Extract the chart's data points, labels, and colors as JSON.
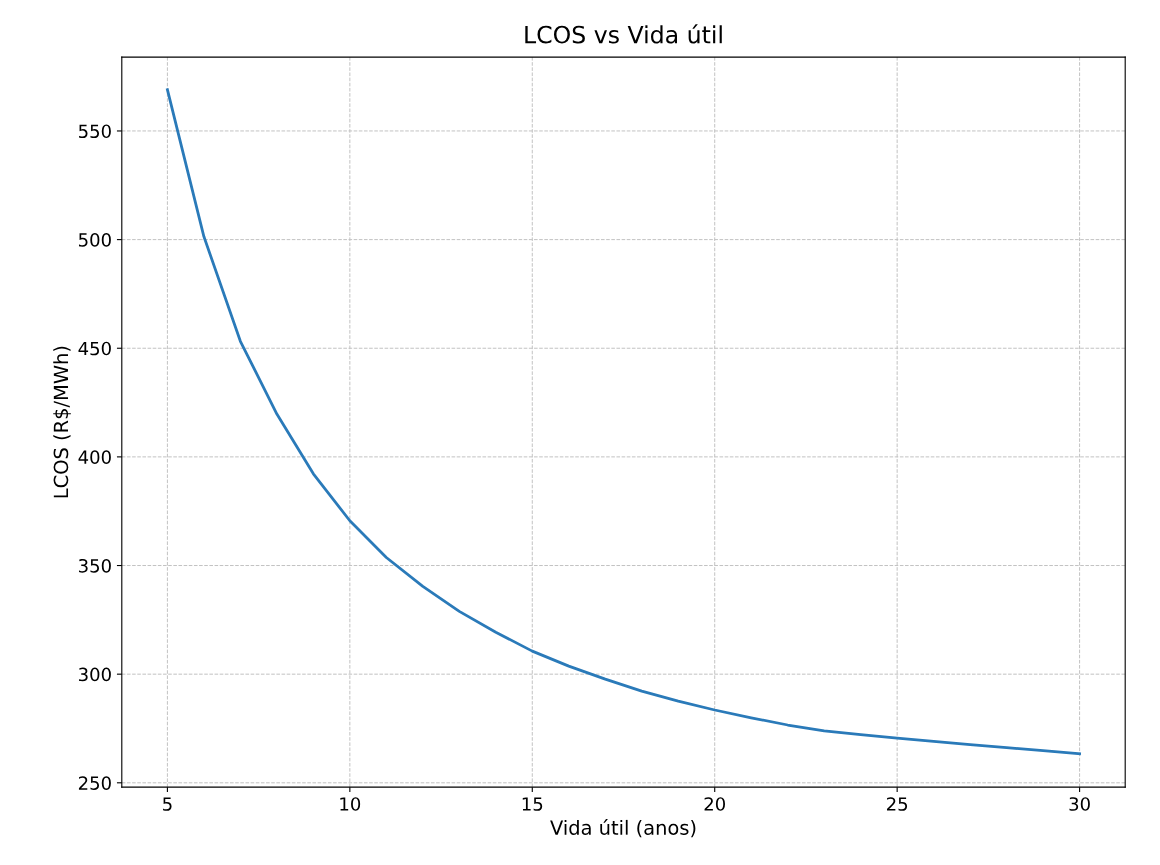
{
  "chart_data": {
    "type": "line",
    "title": "LCOS vs Vida útil",
    "xlabel": "Vida útil (anos)",
    "ylabel": "LCOS (R$/MWh)",
    "x": [
      5,
      6,
      7,
      8,
      9,
      10,
      11,
      12,
      13,
      14,
      15,
      16,
      17,
      18,
      19,
      20,
      21,
      22,
      23,
      24,
      25,
      26,
      27,
      28,
      29,
      30
    ],
    "series": [
      {
        "color": "#2a7ab9",
        "values": [
          569,
          501.4,
          453.2,
          419.7,
          392.2,
          370.6,
          353.7,
          340.4,
          328.9,
          319.3,
          310.6,
          303.7,
          297.7,
          292.2,
          287.6,
          283.5,
          279.9,
          276.6,
          273.9,
          272.2,
          270.6,
          269.1,
          267.6,
          266.2,
          264.8,
          263.4
        ]
      }
    ],
    "xlim": [
      3.75,
      31.25
    ],
    "ylim": [
      248,
      584
    ],
    "xticks": [
      5,
      10,
      15,
      20,
      25,
      30
    ],
    "yticks": [
      250,
      300,
      350,
      400,
      450,
      500,
      550
    ],
    "grid": true,
    "line_style": "solid",
    "marker": "none"
  }
}
